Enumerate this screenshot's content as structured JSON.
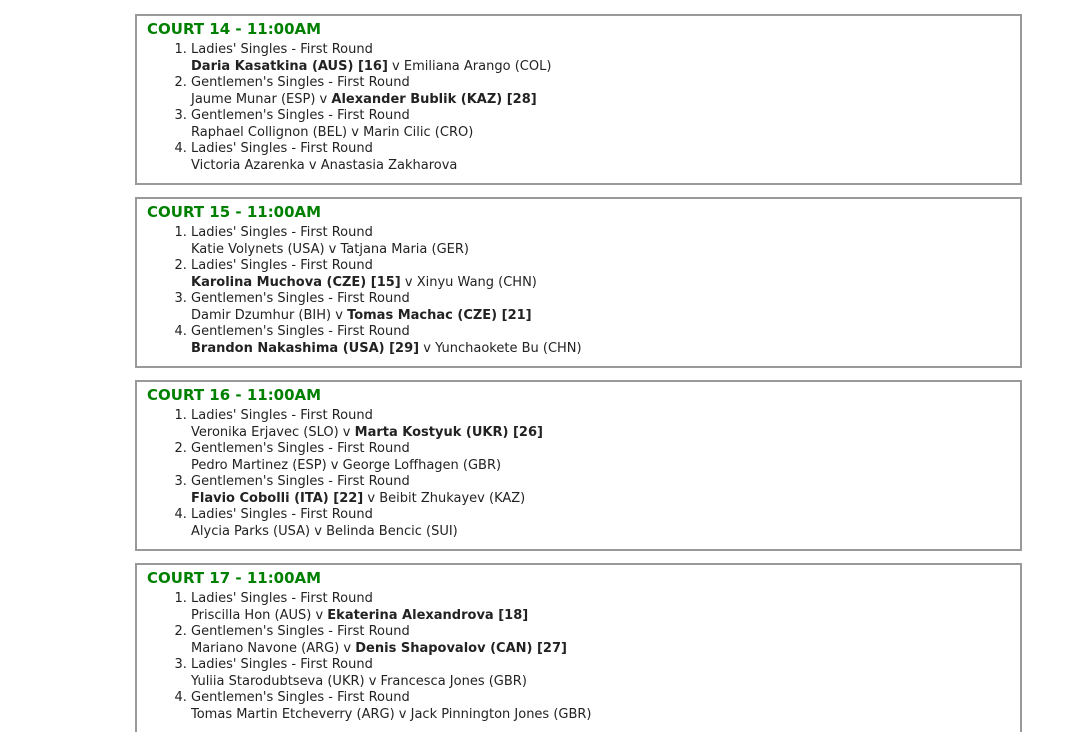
{
  "theme": {
    "accent_green": "#008000",
    "border_gray": "#999999",
    "text_color": "#222222",
    "background": "#ffffff"
  },
  "versus_separator": "v",
  "courts": [
    {
      "title": "COURT 14 - 11:00AM",
      "matches": [
        {
          "event": "Ladies' Singles - First Round",
          "player1": "Daria Kasatkina (AUS) [16]",
          "player1_bold": true,
          "player2": "Emiliana Arango (COL)",
          "player2_bold": false
        },
        {
          "event": "Gentlemen's Singles - First Round",
          "player1": "Jaume Munar (ESP)",
          "player1_bold": false,
          "player2": "Alexander Bublik (KAZ) [28]",
          "player2_bold": true
        },
        {
          "event": "Gentlemen's Singles - First Round",
          "player1": "Raphael Collignon (BEL)",
          "player1_bold": false,
          "player2": "Marin Cilic (CRO)",
          "player2_bold": false
        },
        {
          "event": "Ladies' Singles - First Round",
          "player1": "Victoria Azarenka",
          "player1_bold": false,
          "player2": "Anastasia Zakharova",
          "player2_bold": false
        }
      ]
    },
    {
      "title": "COURT 15 - 11:00AM",
      "matches": [
        {
          "event": "Ladies' Singles - First Round",
          "player1": "Katie Volynets (USA)",
          "player1_bold": false,
          "player2": "Tatjana Maria (GER)",
          "player2_bold": false
        },
        {
          "event": "Ladies' Singles - First Round",
          "player1": "Karolina Muchova (CZE) [15]",
          "player1_bold": true,
          "player2": "Xinyu Wang (CHN)",
          "player2_bold": false
        },
        {
          "event": "Gentlemen's Singles - First Round",
          "player1": "Damir Dzumhur (BIH)",
          "player1_bold": false,
          "player2": "Tomas Machac (CZE) [21]",
          "player2_bold": true
        },
        {
          "event": "Gentlemen's Singles - First Round",
          "player1": "Brandon Nakashima (USA) [29]",
          "player1_bold": true,
          "player2": "Yunchaokete Bu (CHN)",
          "player2_bold": false
        }
      ]
    },
    {
      "title": "COURT 16 - 11:00AM",
      "matches": [
        {
          "event": "Ladies' Singles - First Round",
          "player1": "Veronika Erjavec (SLO)",
          "player1_bold": false,
          "player2": "Marta Kostyuk (UKR) [26]",
          "player2_bold": true
        },
        {
          "event": "Gentlemen's Singles - First Round",
          "player1": "Pedro Martinez (ESP)",
          "player1_bold": false,
          "player2": "George Loffhagen (GBR)",
          "player2_bold": false
        },
        {
          "event": "Gentlemen's Singles - First Round",
          "player1": "Flavio Cobolli (ITA) [22]",
          "player1_bold": true,
          "player2": "Beibit Zhukayev (KAZ)",
          "player2_bold": false
        },
        {
          "event": "Ladies' Singles - First Round",
          "player1": "Alycia Parks (USA)",
          "player1_bold": false,
          "player2": "Belinda Bencic (SUI)",
          "player2_bold": false
        }
      ]
    },
    {
      "title": "COURT 17 - 11:00AM",
      "matches": [
        {
          "event": "Ladies' Singles - First Round",
          "player1": "Priscilla Hon (AUS)",
          "player1_bold": false,
          "player2": "Ekaterina Alexandrova [18]",
          "player2_bold": true
        },
        {
          "event": "Gentlemen's Singles - First Round",
          "player1": "Mariano Navone (ARG)",
          "player1_bold": false,
          "player2": "Denis Shapovalov (CAN) [27]",
          "player2_bold": true
        },
        {
          "event": "Ladies' Singles - First Round",
          "player1": "Yuliia Starodubtseva (UKR)",
          "player1_bold": false,
          "player2": "Francesca Jones (GBR)",
          "player2_bold": false
        },
        {
          "event": "Gentlemen's Singles - First Round",
          "player1": "Tomas Martin Etcheverry (ARG)",
          "player1_bold": false,
          "player2": "Jack Pinnington Jones (GBR)",
          "player2_bold": false
        }
      ]
    }
  ]
}
